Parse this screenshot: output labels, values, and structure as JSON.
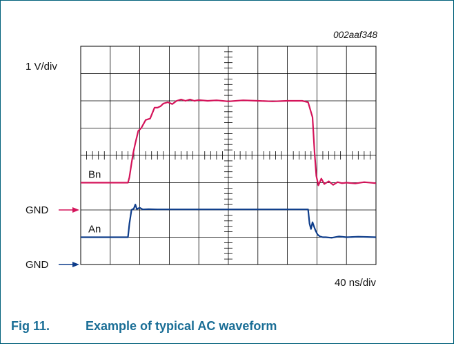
{
  "figure": {
    "reference_code": "002aaf348",
    "number": "Fig 11.",
    "caption": "Example of typical AC waveform"
  },
  "colors": {
    "frame": "#00607a",
    "caption": "#1a6e96",
    "trace_bn": "#d4145a",
    "trace_an": "#0d3c8a",
    "grid": "#000000"
  },
  "chart_data": {
    "type": "line",
    "x_scale_label": "40 ns/div",
    "y_scale_label": "1 V/div",
    "xlim": [
      0,
      10
    ],
    "ylim": [
      0,
      8
    ],
    "x_unit": "div",
    "y_unit": "div",
    "grid": true,
    "series": [
      {
        "name": "Bn",
        "ground_label": "GND",
        "ground_level": 3.0,
        "color": "#d4145a",
        "x": [
          0,
          1.6,
          1.65,
          1.72,
          1.78,
          1.85,
          1.95,
          2.05,
          2.2,
          2.35,
          2.5,
          2.6,
          2.7,
          2.8,
          2.95,
          3.1,
          3.25,
          3.4,
          3.55,
          3.7,
          3.85,
          4.0,
          4.3,
          4.6,
          5.0,
          5.5,
          6.0,
          6.5,
          7.0,
          7.5,
          7.7,
          7.85,
          7.92,
          7.98,
          8.05,
          8.15,
          8.25,
          8.4,
          8.55,
          8.7,
          8.85,
          9.0,
          9.3,
          9.6,
          10.0
        ],
        "y": [
          3.0,
          3.0,
          3.2,
          3.7,
          4.1,
          4.45,
          4.9,
          5.0,
          5.3,
          5.35,
          5.75,
          5.75,
          5.8,
          5.9,
          5.95,
          5.88,
          6.0,
          6.05,
          6.0,
          6.05,
          6.0,
          6.03,
          6.0,
          6.02,
          5.98,
          6.02,
          6.0,
          5.98,
          6.0,
          6.0,
          5.95,
          5.4,
          4.1,
          3.25,
          2.9,
          3.15,
          2.95,
          3.05,
          2.92,
          3.02,
          2.98,
          3.0,
          2.97,
          3.02,
          2.98
        ]
      },
      {
        "name": "An",
        "ground_label": "GND",
        "ground_level": 1.0,
        "color": "#0d3c8a",
        "x": [
          0,
          1.6,
          1.65,
          1.72,
          1.8,
          1.85,
          1.9,
          2.0,
          2.1,
          2.3,
          2.6,
          3.0,
          4.0,
          5.0,
          6.0,
          7.0,
          7.5,
          7.7,
          7.75,
          7.8,
          7.85,
          7.9,
          7.95,
          8.02,
          8.1,
          8.2,
          8.3,
          8.5,
          8.75,
          9.0,
          9.4,
          10.0
        ],
        "y": [
          1.0,
          1.0,
          1.5,
          2.0,
          2.05,
          2.2,
          2.03,
          2.08,
          2.02,
          2.03,
          2.02,
          2.02,
          2.02,
          2.02,
          2.02,
          2.02,
          2.02,
          2.02,
          1.5,
          1.3,
          1.55,
          1.4,
          1.25,
          1.1,
          1.03,
          1.0,
          1.0,
          0.98,
          1.03,
          1.0,
          1.02,
          1.0
        ]
      }
    ]
  }
}
